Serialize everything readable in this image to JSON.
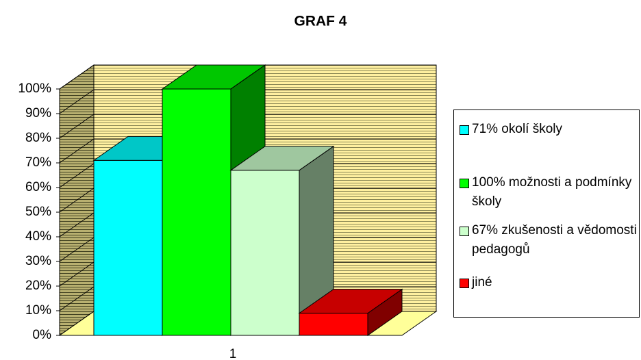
{
  "chart_data": {
    "type": "bar3d",
    "title": "GRAF 4",
    "categories": [
      "1"
    ],
    "series": [
      {
        "name": "71% okolí školy",
        "color": "#00ffff",
        "values": [
          71
        ]
      },
      {
        "name": "100% možnosti a podmínky školy",
        "color": "#00ff00",
        "values": [
          100
        ]
      },
      {
        "name": "67% zkušenosti a vědomosti pedagogů",
        "color": "#ccffcc",
        "values": [
          67
        ]
      },
      {
        "name": "jiné",
        "color": "#ff0000",
        "values": [
          9
        ]
      }
    ],
    "ylim": [
      0,
      100
    ],
    "yticks": [
      {
        "value": 0,
        "label": "0%"
      },
      {
        "value": 10,
        "label": "10%"
      },
      {
        "value": 20,
        "label": "20%"
      },
      {
        "value": 30,
        "label": "30%"
      },
      {
        "value": 40,
        "label": "40%"
      },
      {
        "value": 50,
        "label": "50%"
      },
      {
        "value": 60,
        "label": "60%"
      },
      {
        "value": 70,
        "label": "70%"
      },
      {
        "value": 80,
        "label": "80%"
      },
      {
        "value": 90,
        "label": "90%"
      },
      {
        "value": 100,
        "label": "100%"
      }
    ],
    "grid": true,
    "legend": "right"
  }
}
